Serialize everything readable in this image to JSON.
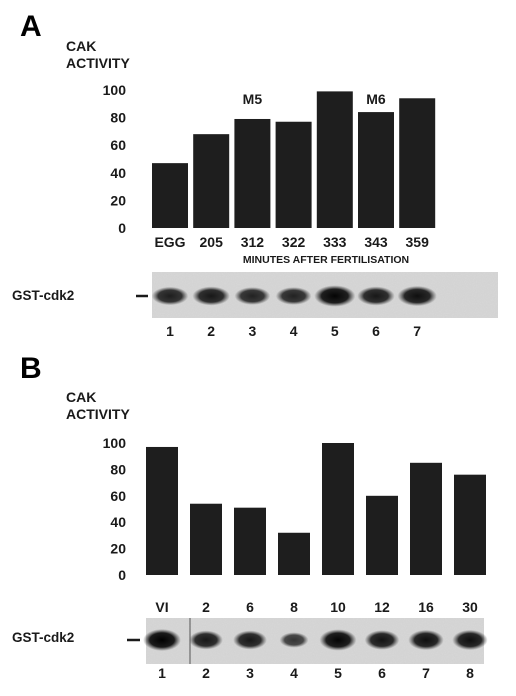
{
  "chart_data": [
    {
      "type": "bar",
      "panel": "A",
      "ylabel_lines": [
        "CAK",
        "ACTIVITY"
      ],
      "ylim": [
        0,
        100
      ],
      "yticks": [
        0,
        20,
        40,
        60,
        80,
        100
      ],
      "categories": [
        "EGG",
        "205",
        "312",
        "322",
        "333",
        "343",
        "359"
      ],
      "values": [
        47,
        68,
        79,
        77,
        99,
        84,
        94
      ],
      "xlabel": "MINUTES AFTER FERTILISATION",
      "annotations": [
        {
          "text": "M5",
          "category": "312"
        },
        {
          "text": "M6",
          "category": "343"
        }
      ],
      "blot": {
        "label": "GST-cdk2",
        "lanes": [
          "1",
          "2",
          "3",
          "4",
          "5",
          "6",
          "7"
        ],
        "band_intensity": [
          0.7,
          0.75,
          0.65,
          0.65,
          0.95,
          0.75,
          0.85
        ]
      },
      "grid": false,
      "bar_color": "#1e1e1e"
    },
    {
      "type": "bar",
      "panel": "B",
      "ylabel_lines": [
        "CAK",
        "ACTIVITY"
      ],
      "ylim": [
        0,
        100
      ],
      "yticks": [
        0,
        20,
        40,
        60,
        80,
        100
      ],
      "categories": [
        "VI",
        "2",
        "6",
        "8",
        "10",
        "12",
        "16",
        "30"
      ],
      "values": [
        97,
        54,
        51,
        32,
        100,
        60,
        85,
        76
      ],
      "blot": {
        "label": "GST-cdk2",
        "lanes": [
          "1",
          "2",
          "3",
          "4",
          "5",
          "6",
          "7",
          "8"
        ],
        "band_intensity": [
          1.0,
          0.75,
          0.75,
          0.45,
          0.95,
          0.8,
          0.85,
          0.85
        ]
      },
      "grid": false,
      "bar_color": "#1e1e1e"
    }
  ]
}
